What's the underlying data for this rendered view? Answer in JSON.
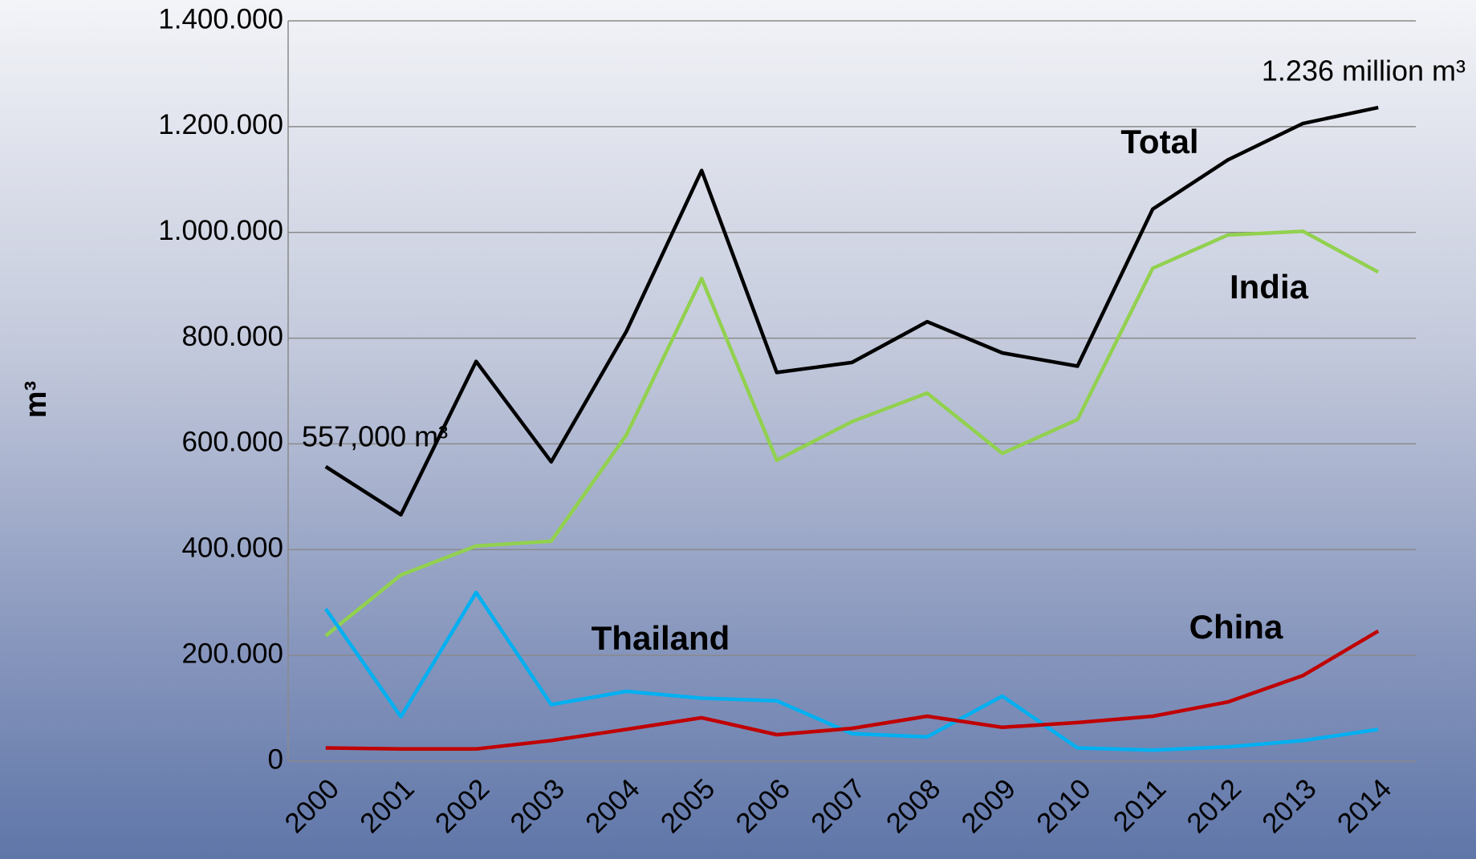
{
  "chart_data": {
    "type": "line",
    "y_label": "m³",
    "categories": [
      "2000",
      "2001",
      "2002",
      "2003",
      "2004",
      "2005",
      "2006",
      "2007",
      "2008",
      "2009",
      "2010",
      "2011",
      "2012",
      "2013",
      "2014"
    ],
    "series": [
      {
        "name": "Total",
        "color": "#000000",
        "values": [
          557000,
          466000,
          756000,
          566000,
          813000,
          1117000,
          735000,
          754000,
          831000,
          772000,
          747000,
          1044000,
          1137000,
          1206000,
          1236000
        ]
      },
      {
        "name": "India",
        "color": "#92d050",
        "values": [
          237000,
          352000,
          407000,
          416000,
          617000,
          913000,
          569000,
          642000,
          696000,
          582000,
          646000,
          932000,
          995000,
          1002000,
          925000
        ]
      },
      {
        "name": "Thailand",
        "color": "#00b0f0",
        "values": [
          288000,
          84000,
          319000,
          107000,
          132000,
          119000,
          114000,
          52000,
          46000,
          123000,
          25000,
          21000,
          27000,
          39000,
          60000
        ]
      },
      {
        "name": "China",
        "color": "#c00000",
        "values": [
          25000,
          23000,
          23000,
          39000,
          60000,
          82000,
          50000,
          62000,
          85000,
          64000,
          73000,
          85000,
          112000,
          162000,
          246000
        ]
      }
    ],
    "annotations": [
      "557,000 m³",
      "1.236 million m³"
    ],
    "ylim": [
      0,
      1400000
    ],
    "yticks": [
      0,
      {
        "value": 200000,
        "label": "200.000"
      },
      {
        "value": 400000,
        "label": "400.000"
      },
      {
        "value": 600000,
        "label": "600.000"
      },
      {
        "value": 800000,
        "label": "800.000"
      },
      {
        "value": 1000000,
        "label": "1.000.000"
      },
      {
        "value": 1200000,
        "label": "1.200.000"
      },
      {
        "value": 1400000,
        "label": "1.400.000"
      }
    ],
    "grid": true
  }
}
